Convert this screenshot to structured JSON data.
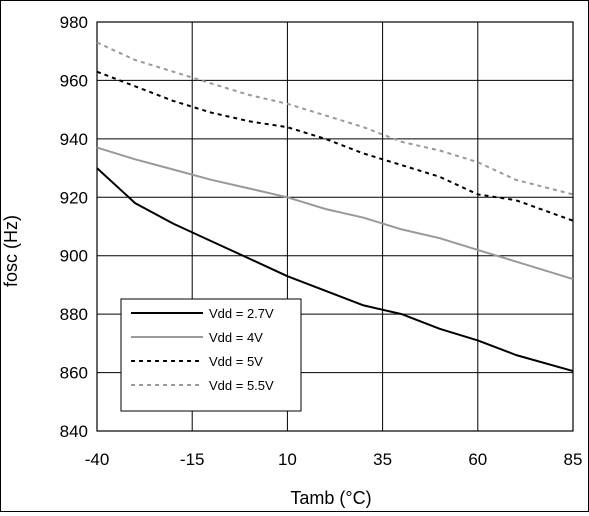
{
  "chart_data": {
    "type": "line",
    "xlabel": "Tamb (°C)",
    "ylabel": "fosc (Hz)",
    "xlim": [
      -40,
      85
    ],
    "ylim": [
      840,
      980
    ],
    "x_ticks": [
      "-40",
      "-15",
      "10",
      "35",
      "60",
      "85"
    ],
    "y_ticks": [
      "840",
      "860",
      "880",
      "900",
      "920",
      "940",
      "960",
      "980"
    ],
    "grid": true,
    "legend_position": "bottom-left",
    "series": [
      {
        "name": "Vdd = 2.7V",
        "color": "#000000",
        "style": "solid",
        "x": [
          -40,
          -30,
          -20,
          -10,
          0,
          10,
          20,
          30,
          40,
          50,
          60,
          70,
          85
        ],
        "y": [
          930,
          918,
          911,
          905,
          899,
          893,
          888,
          883,
          880,
          875,
          871,
          866,
          860.5
        ]
      },
      {
        "name": "Vdd = 4V",
        "color": "#999999",
        "style": "solid",
        "x": [
          -40,
          -30,
          -20,
          -10,
          0,
          10,
          20,
          30,
          40,
          50,
          60,
          70,
          85
        ],
        "y": [
          937,
          933,
          929.5,
          926,
          923,
          920,
          916,
          913,
          909,
          906,
          902,
          898,
          892
        ]
      },
      {
        "name": "Vdd = 5V",
        "color": "#000000",
        "style": "dashed",
        "x": [
          -40,
          -30,
          -20,
          -10,
          0,
          10,
          20,
          30,
          40,
          50,
          60,
          70,
          85
        ],
        "y": [
          963,
          958,
          953,
          949,
          946,
          944,
          940,
          935,
          931,
          927,
          921,
          919,
          912
        ]
      },
      {
        "name": "Vdd = 5.5V",
        "color": "#999999",
        "style": "dashed",
        "x": [
          -40,
          -30,
          -20,
          -10,
          0,
          10,
          20,
          30,
          40,
          50,
          60,
          70,
          85
        ],
        "y": [
          973,
          967,
          963,
          959,
          955,
          952,
          948,
          944,
          939,
          936,
          932,
          926,
          921
        ]
      }
    ]
  }
}
